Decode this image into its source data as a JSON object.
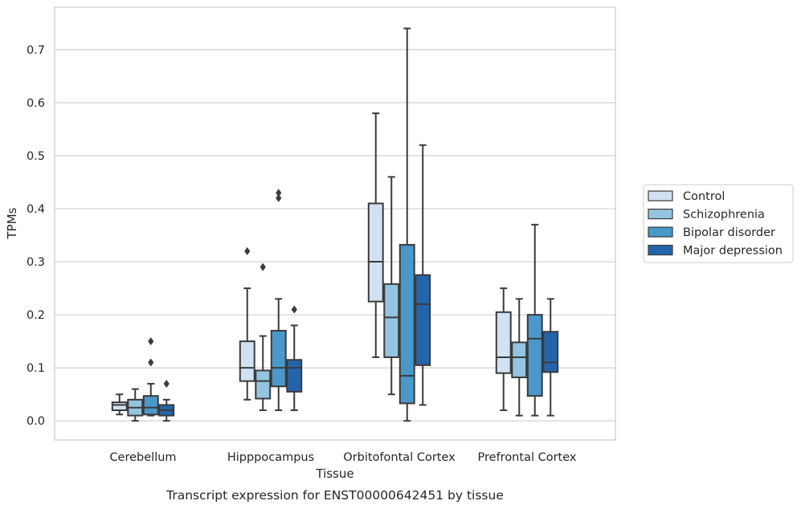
{
  "caption": "Transcript expression for ENST00000642451 by tissue",
  "chart_data": {
    "type": "box",
    "title": "",
    "xlabel": "Tissue",
    "ylabel": "TPMs",
    "ylim": [
      -0.036,
      0.78
    ],
    "yticks": [
      0.0,
      0.1,
      0.2,
      0.3,
      0.4,
      0.5,
      0.6,
      0.7
    ],
    "ytick_labels": [
      "0.0",
      "0.1",
      "0.2",
      "0.3",
      "0.4",
      "0.5",
      "0.6",
      "0.7"
    ],
    "categories": [
      "Cerebellum",
      "Hipppocampus",
      "Orbitofontal Cortex",
      "Prefrontal Cortex"
    ],
    "grid": "horizontal",
    "legend_position": "right",
    "series": [
      {
        "name": "Control",
        "color": "#d0e1f2",
        "boxes": [
          {
            "whislo": 0.012,
            "q1": 0.02,
            "med": 0.03,
            "q3": 0.035,
            "whishi": 0.05,
            "fliers": []
          },
          {
            "whislo": 0.04,
            "q1": 0.075,
            "med": 0.1,
            "q3": 0.15,
            "whishi": 0.25,
            "fliers": [
              0.32
            ]
          },
          {
            "whislo": 0.12,
            "q1": 0.225,
            "med": 0.3,
            "q3": 0.41,
            "whishi": 0.58,
            "fliers": []
          },
          {
            "whislo": 0.02,
            "q1": 0.09,
            "med": 0.12,
            "q3": 0.205,
            "whishi": 0.25,
            "fliers": []
          }
        ]
      },
      {
        "name": "Schizophrenia",
        "color": "#94c4df",
        "boxes": [
          {
            "whislo": 0.0,
            "q1": 0.01,
            "med": 0.025,
            "q3": 0.04,
            "whishi": 0.06,
            "fliers": []
          },
          {
            "whislo": 0.02,
            "q1": 0.042,
            "med": 0.075,
            "q3": 0.095,
            "whishi": 0.16,
            "fliers": [
              0.29
            ]
          },
          {
            "whislo": 0.05,
            "q1": 0.12,
            "med": 0.195,
            "q3": 0.258,
            "whishi": 0.46,
            "fliers": []
          },
          {
            "whislo": 0.01,
            "q1": 0.082,
            "med": 0.12,
            "q3": 0.148,
            "whishi": 0.23,
            "fliers": []
          }
        ]
      },
      {
        "name": "Bipolar disorder",
        "color": "#4a98c9",
        "boxes": [
          {
            "whislo": 0.01,
            "q1": 0.012,
            "med": 0.025,
            "q3": 0.047,
            "whishi": 0.07,
            "fliers": [
              0.11,
              0.15
            ]
          },
          {
            "whislo": 0.02,
            "q1": 0.065,
            "med": 0.1,
            "q3": 0.17,
            "whishi": 0.23,
            "fliers": [
              0.42,
              0.43
            ]
          },
          {
            "whislo": 0.0,
            "q1": 0.033,
            "med": 0.085,
            "q3": 0.332,
            "whishi": 0.74,
            "fliers": []
          },
          {
            "whislo": 0.01,
            "q1": 0.047,
            "med": 0.155,
            "q3": 0.2,
            "whishi": 0.37,
            "fliers": []
          }
        ]
      },
      {
        "name": "Major depression",
        "color": "#2464ab",
        "boxes": [
          {
            "whislo": 0.0,
            "q1": 0.01,
            "med": 0.02,
            "q3": 0.03,
            "whishi": 0.04,
            "fliers": [
              0.07
            ]
          },
          {
            "whislo": 0.02,
            "q1": 0.055,
            "med": 0.1,
            "q3": 0.115,
            "whishi": 0.18,
            "fliers": [
              0.21
            ]
          },
          {
            "whislo": 0.03,
            "q1": 0.105,
            "med": 0.22,
            "q3": 0.275,
            "whishi": 0.52,
            "fliers": []
          },
          {
            "whislo": 0.01,
            "q1": 0.092,
            "med": 0.11,
            "q3": 0.168,
            "whishi": 0.23,
            "fliers": []
          }
        ]
      }
    ]
  }
}
